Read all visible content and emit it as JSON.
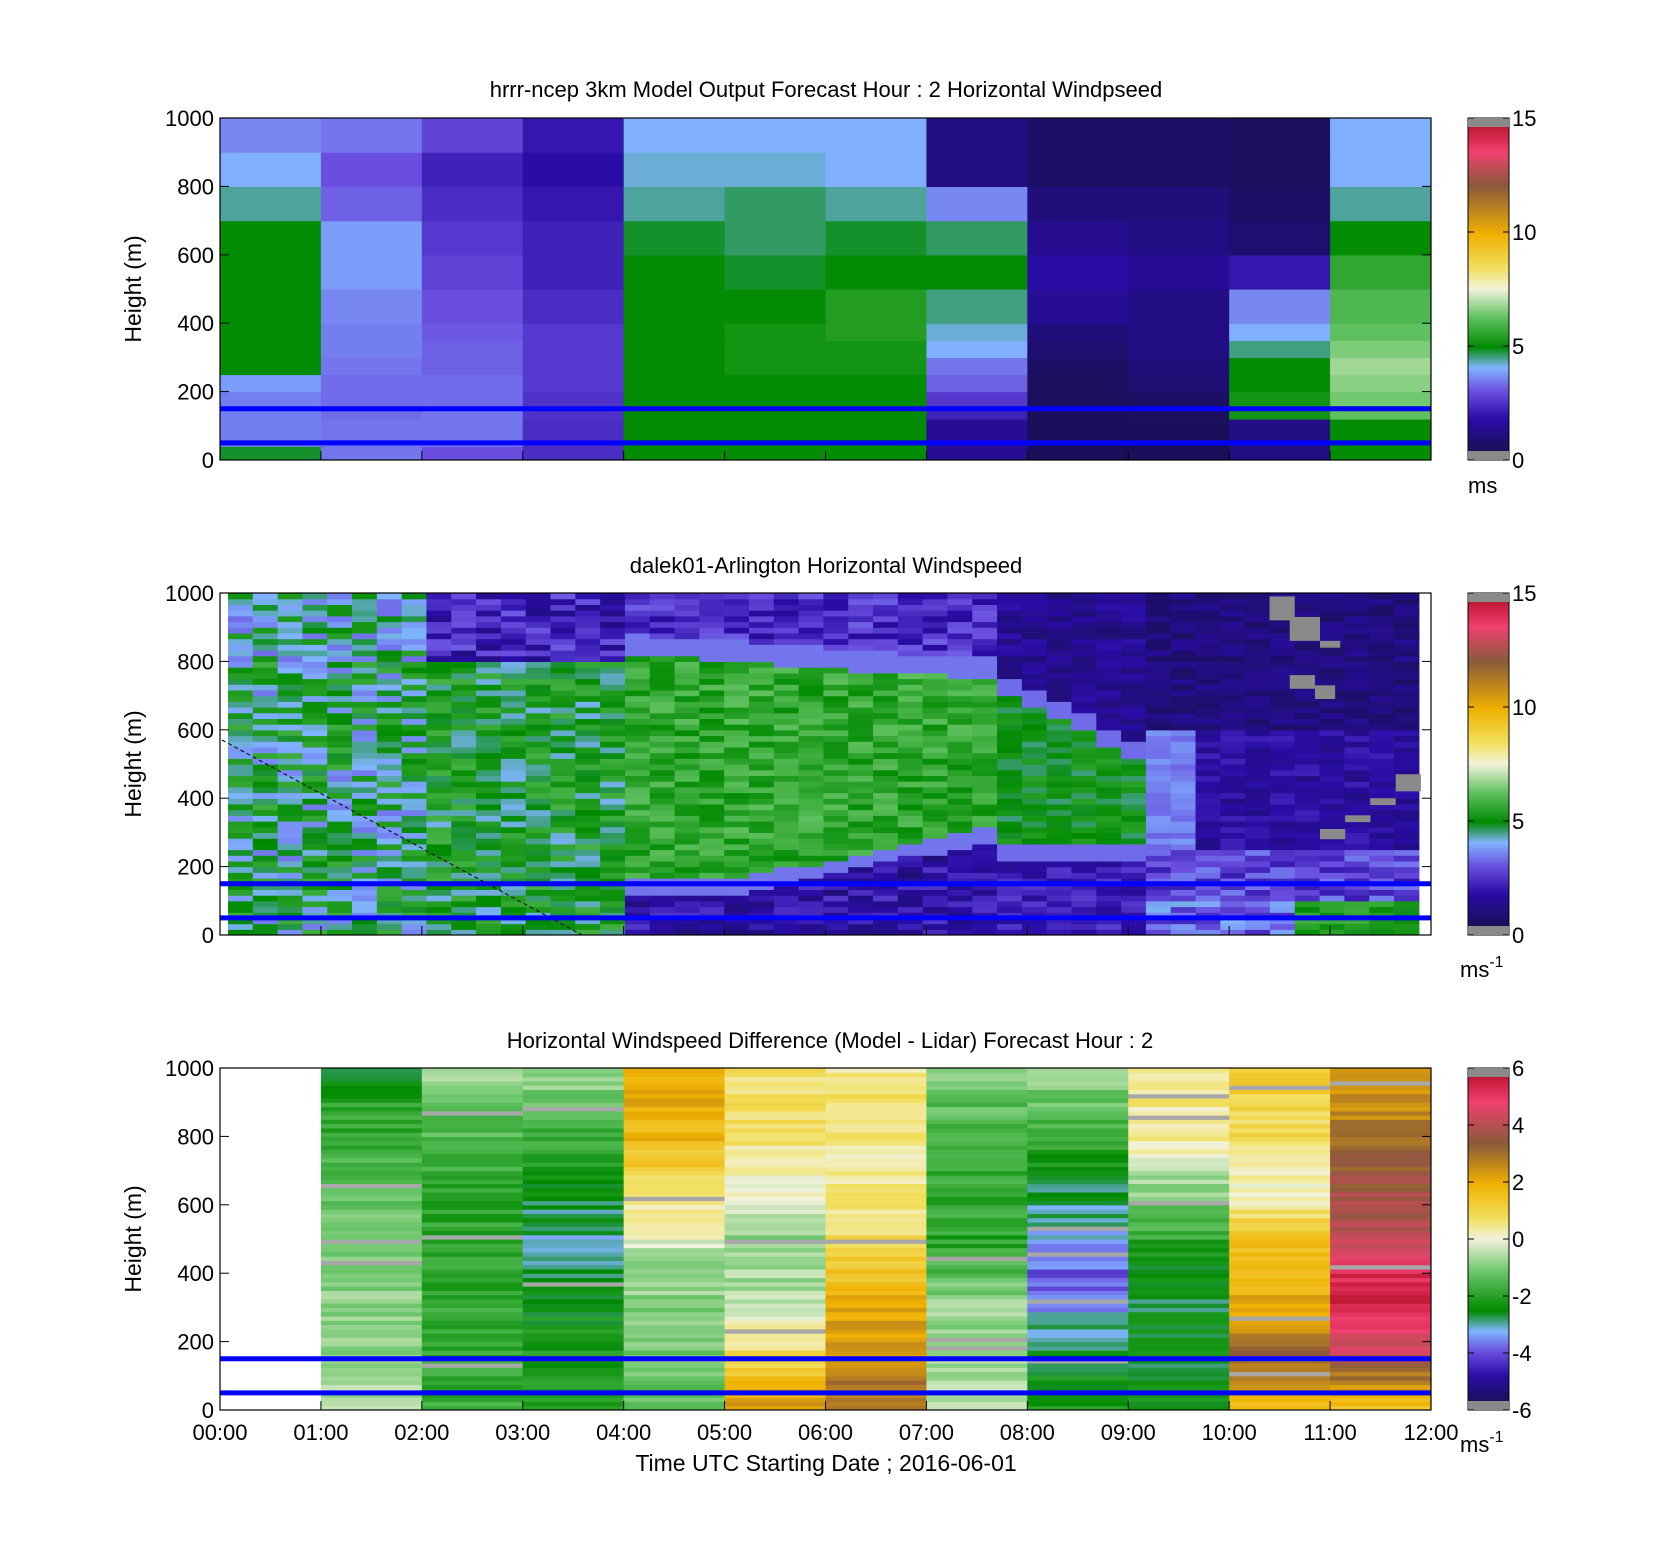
{
  "chart_data": [
    {
      "type": "heatmap",
      "title": "hrrr-ncep 3km Model Output   Forecast Hour : 2 Horizontal Windpseed",
      "ylabel": "Height (m)",
      "ylim": [
        0,
        1000
      ],
      "yticks": [
        "0",
        "200",
        "400",
        "600",
        "800",
        "1000"
      ],
      "xlim": [
        0,
        12
      ],
      "colorbar": {
        "ticks": [
          "0",
          "5",
          "10",
          "15"
        ],
        "range": [
          0,
          15
        ],
        "unit": "ms",
        "unit_sup": ""
      },
      "ref_lines": [
        150,
        50
      ],
      "levels": [
        0,
        40,
        80,
        120,
        160,
        200,
        250,
        300,
        350,
        400,
        500,
        600,
        700,
        800,
        900,
        1000
      ],
      "values": [
        [
          4.8,
          3.4,
          3.0,
          2.4,
          5.0,
          5.0,
          5.0,
          1.5,
          0.4,
          0.4,
          1.2,
          5.0
        ],
        [
          3.5,
          3.4,
          3.4,
          2.4,
          5.0,
          5.0,
          5.0,
          1.5,
          0.4,
          0.4,
          1.2,
          5.0
        ],
        [
          3.5,
          3.4,
          3.4,
          2.4,
          5.0,
          5.0,
          5.0,
          1.5,
          0.4,
          0.4,
          1.2,
          5.0
        ],
        [
          3.5,
          3.3,
          3.4,
          2.5,
          5.0,
          5.0,
          5.0,
          2.2,
          0.4,
          0.5,
          5.2,
          6.2
        ],
        [
          3.5,
          3.3,
          3.3,
          2.5,
          5.0,
          5.0,
          5.0,
          2.6,
          0.5,
          0.6,
          5.2,
          6.4
        ],
        [
          3.8,
          3.3,
          3.3,
          2.6,
          5.0,
          5.0,
          5.0,
          3.2,
          0.5,
          0.8,
          5.0,
          6.6
        ],
        [
          5.0,
          3.4,
          3.2,
          2.6,
          5.0,
          5.2,
          5.2,
          3.4,
          0.6,
          1.0,
          5.0,
          6.8
        ],
        [
          5.0,
          3.5,
          3.2,
          2.6,
          5.0,
          5.2,
          5.2,
          4.0,
          0.8,
          1.2,
          4.5,
          6.5
        ],
        [
          5.0,
          3.5,
          3.1,
          2.6,
          5.0,
          5.2,
          5.4,
          4.2,
          1.0,
          1.2,
          4.0,
          6.2
        ],
        [
          5.0,
          3.6,
          3.0,
          2.4,
          5.0,
          5.0,
          5.4,
          4.5,
          1.5,
          1.2,
          3.6,
          6.0
        ],
        [
          5.0,
          3.8,
          2.8,
          2.2,
          5.0,
          4.8,
          5.0,
          5.0,
          1.8,
          1.5,
          2.0,
          5.6
        ],
        [
          5.0,
          3.8,
          2.6,
          2.2,
          4.8,
          4.6,
          4.8,
          4.6,
          1.4,
          1.2,
          0.8,
          5.0
        ],
        [
          4.4,
          3.2,
          2.4,
          2.0,
          4.4,
          4.6,
          4.4,
          3.6,
          1.0,
          1.0,
          0.6,
          4.4
        ],
        [
          4.0,
          3.0,
          2.2,
          1.8,
          4.2,
          4.2,
          4.0,
          1.2,
          0.6,
          0.6,
          0.5,
          4.0
        ],
        [
          3.6,
          3.4,
          2.8,
          2.0,
          4.0,
          4.0,
          4.0,
          1.2,
          0.6,
          0.6,
          0.5,
          4.0
        ]
      ]
    },
    {
      "type": "heatmap",
      "title": "dalek01-Arlington  Horizontal Windspeed",
      "ylabel": "Height (m)",
      "ylim": [
        0,
        1000
      ],
      "yticks": [
        "0",
        "200",
        "400",
        "600",
        "800",
        "1000"
      ],
      "xlim": [
        0,
        12
      ],
      "colorbar": {
        "ticks": [
          "0",
          "5",
          "10",
          "15"
        ],
        "range": [
          0,
          15
        ],
        "unit": "ms",
        "unit_sup": "-1"
      },
      "ref_lines": [
        150,
        50
      ]
    },
    {
      "type": "heatmap",
      "title": "Horizontal Windspeed Difference (Model - Lidar) Forecast Hour : 2",
      "ylabel": "Height (m)",
      "xlabel": "Time UTC  Starting Date ; 2016-06-01",
      "ylim": [
        0,
        1000
      ],
      "yticks": [
        "0",
        "200",
        "400",
        "600",
        "800",
        "1000"
      ],
      "xlim": [
        0,
        12
      ],
      "xticks": [
        "00:00",
        "01:00",
        "02:00",
        "03:00",
        "04:00",
        "05:00",
        "06:00",
        "07:00",
        "08:00",
        "09:00",
        "10:00",
        "11:00",
        "12:00"
      ],
      "colorbar": {
        "ticks": [
          "-6",
          "-4",
          "-2",
          "0",
          "2",
          "4",
          "6"
        ],
        "range": [
          -6,
          6
        ],
        "unit": "ms",
        "unit_sup": "-1"
      },
      "ref_lines": [
        150,
        50
      ],
      "column_profiles": [
        null,
        [
          [
            0,
            -0.6
          ],
          [
            500,
            -1.1
          ],
          [
            900,
            -2.0
          ],
          [
            1000,
            -2.4
          ]
        ],
        [
          [
            0,
            -1.8
          ],
          [
            600,
            -2.0
          ],
          [
            900,
            -1.2
          ],
          [
            1000,
            -0.4
          ]
        ],
        [
          [
            0,
            -2.0
          ],
          [
            300,
            -2.4
          ],
          [
            500,
            -3.0
          ],
          [
            800,
            -1.8
          ],
          [
            1000,
            -0.6
          ]
        ],
        [
          [
            0,
            -1.4
          ],
          [
            400,
            -0.8
          ],
          [
            600,
            0.4
          ],
          [
            800,
            1.8
          ],
          [
            1000,
            2.0
          ]
        ],
        [
          [
            0,
            2.2
          ],
          [
            150,
            1.0
          ],
          [
            300,
            -0.4
          ],
          [
            500,
            -1.0
          ],
          [
            700,
            0.4
          ],
          [
            900,
            0.8
          ],
          [
            1000,
            0.6
          ]
        ],
        [
          [
            0,
            3.2
          ],
          [
            120,
            2.6
          ],
          [
            300,
            2.0
          ],
          [
            500,
            0.8
          ],
          [
            700,
            0.4
          ],
          [
            900,
            0.8
          ],
          [
            1000,
            0.2
          ]
        ],
        [
          [
            0,
            -0.4
          ],
          [
            300,
            -0.8
          ],
          [
            500,
            -2.0
          ],
          [
            800,
            -1.6
          ],
          [
            1000,
            -1.0
          ]
        ],
        [
          [
            0,
            -2.0
          ],
          [
            250,
            -3.0
          ],
          [
            380,
            -4.0
          ],
          [
            520,
            -3.2
          ],
          [
            700,
            -2.4
          ],
          [
            900,
            -1.2
          ],
          [
            1000,
            -0.8
          ]
        ],
        [
          [
            0,
            -2.4
          ],
          [
            400,
            -2.6
          ],
          [
            600,
            -1.2
          ],
          [
            800,
            0.4
          ],
          [
            1000,
            0.6
          ]
        ],
        [
          [
            0,
            1.4
          ],
          [
            150,
            3.2
          ],
          [
            300,
            2.0
          ],
          [
            500,
            1.6
          ],
          [
            650,
            0.0
          ],
          [
            800,
            0.8
          ],
          [
            1000,
            1.2
          ]
        ],
        [
          [
            0,
            1.2
          ],
          [
            200,
            4.6
          ],
          [
            350,
            5.6
          ],
          [
            500,
            4.0
          ],
          [
            600,
            3.8
          ],
          [
            800,
            3.0
          ],
          [
            1000,
            2.0
          ]
        ]
      ]
    }
  ]
}
